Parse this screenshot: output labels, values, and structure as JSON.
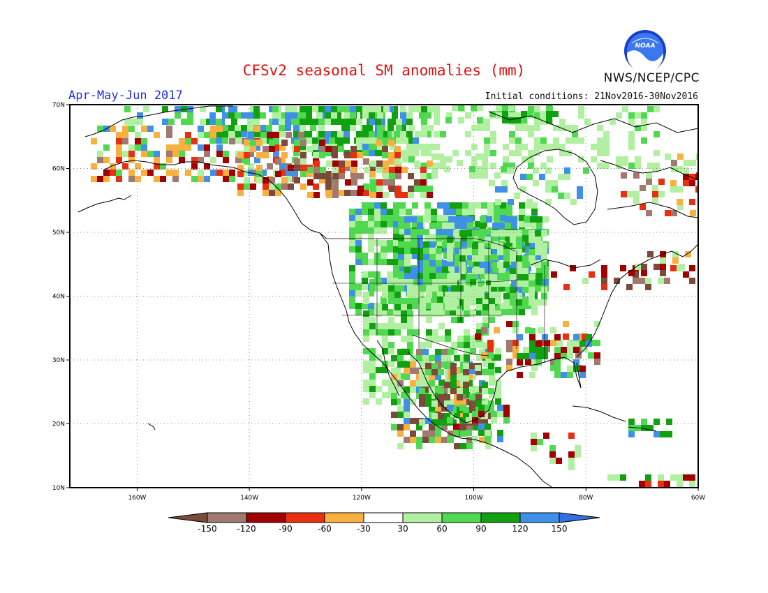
{
  "header": {
    "title": "CFSv2 seasonal SM anomalies (mm)",
    "period": "Apr-May-Jun 2017",
    "initial_conditions": "Initial conditions: 21Nov2016-30Nov2016",
    "agency": "NWS/NCEP/CPC",
    "logo_text": "NOAA"
  },
  "map": {
    "lon_range": [
      -172,
      -60
    ],
    "lat_range": [
      10,
      70
    ],
    "lon_ticks": [
      {
        "value": -160,
        "label": "160W"
      },
      {
        "value": -140,
        "label": "140W"
      },
      {
        "value": -120,
        "label": "120W"
      },
      {
        "value": -100,
        "label": "100W"
      },
      {
        "value": -80,
        "label": "80W"
      },
      {
        "value": -60,
        "label": "60W"
      }
    ],
    "lat_ticks": [
      {
        "value": 10,
        "label": "10N"
      },
      {
        "value": 20,
        "label": "20N"
      },
      {
        "value": 30,
        "label": "30N"
      },
      {
        "value": 40,
        "label": "40N"
      },
      {
        "value": 50,
        "label": "50N"
      },
      {
        "value": 60,
        "label": "60N"
      },
      {
        "value": 70,
        "label": "70N"
      }
    ],
    "grid": true
  },
  "legend": {
    "colors": [
      "#7a4a3a",
      "#a07a70",
      "#a00000",
      "#e83010",
      "#f8b040",
      "#ffffff",
      "#b0f0a0",
      "#50d850",
      "#10a010",
      "#4090e8",
      "#3070e0"
    ],
    "labels": [
      "-150",
      "-120",
      "-90",
      "-60",
      "-30",
      "30",
      "60",
      "90",
      "120",
      "150"
    ]
  }
}
